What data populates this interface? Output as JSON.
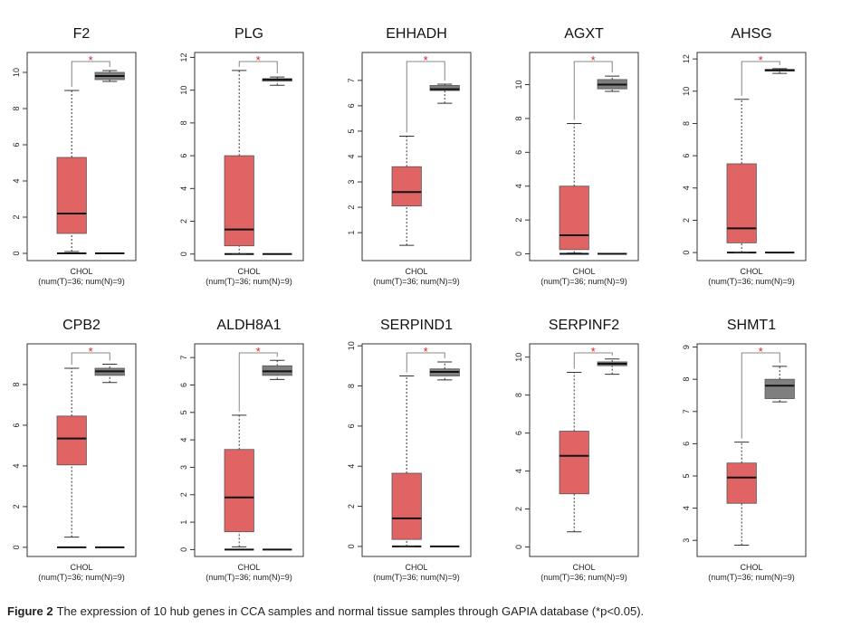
{
  "chart_data": [
    {
      "type": "box",
      "title": "F2",
      "x_label": "CHOL",
      "x_sublabel": "(num(T)=36; num(N)=9)",
      "annotation": "*",
      "ylim": [
        -0.4,
        11.1
      ],
      "yticks": [
        0,
        2,
        4,
        6,
        8,
        10
      ],
      "boxes": [
        {
          "color": "#e06464",
          "min": 0.1,
          "q1": 1.1,
          "median": 2.2,
          "q3": 5.3,
          "max": 9.0
        },
        {
          "color": "#7f7f7f",
          "min": 9.5,
          "q1": 9.6,
          "median": 9.8,
          "q3": 10.0,
          "max": 10.1
        }
      ],
      "zero_boxes": [
        0,
        0
      ]
    },
    {
      "type": "box",
      "title": "PLG",
      "x_label": "CHOL",
      "x_sublabel": "(num(T)=36; num(N)=9)",
      "annotation": "*",
      "ylim": [
        -0.4,
        12.3
      ],
      "yticks": [
        0,
        2,
        4,
        6,
        8,
        10,
        12
      ],
      "boxes": [
        {
          "color": "#e06464",
          "min": 0,
          "q1": 0.5,
          "median": 1.5,
          "q3": 6.0,
          "max": 11.2
        },
        {
          "color": "#7f7f7f",
          "min": 10.3,
          "q1": 10.55,
          "median": 10.65,
          "q3": 10.7,
          "max": 10.8
        }
      ],
      "zero_boxes": [
        0,
        0
      ]
    },
    {
      "type": "box",
      "title": "EHHADH",
      "x_label": "CHOL",
      "x_sublabel": "(num(T)=36; num(N)=9)",
      "annotation": "*",
      "ylim": [
        -0.1,
        8.1
      ],
      "yticks": [
        1,
        2,
        3,
        4,
        5,
        6,
        7
      ],
      "boxes": [
        {
          "color": "#e06464",
          "min": 0.5,
          "q1": 2.05,
          "median": 2.6,
          "q3": 3.6,
          "max": 4.8
        },
        {
          "color": "#7f7f7f",
          "min": 6.1,
          "q1": 6.6,
          "median": 6.65,
          "q3": 6.8,
          "max": 6.85
        }
      ]
    },
    {
      "type": "box",
      "title": "AGXT",
      "x_label": "CHOL",
      "x_sublabel": "(num(T)=36; num(N)=9)",
      "annotation": "*",
      "ylim": [
        -0.4,
        11.9
      ],
      "yticks": [
        0,
        2,
        4,
        6,
        8,
        10
      ],
      "boxes": [
        {
          "color": "#e06464",
          "min": 0.05,
          "q1": 0.25,
          "median": 1.1,
          "q3": 4.0,
          "max": 7.7
        },
        {
          "color": "#7f7f7f",
          "min": 9.6,
          "q1": 9.75,
          "median": 10.0,
          "q3": 10.3,
          "max": 10.5
        }
      ],
      "zero_boxes": [
        0,
        0
      ]
    },
    {
      "type": "box",
      "title": "AHSG",
      "x_label": "CHOL",
      "x_sublabel": "(num(T)=36; num(N)=9)",
      "annotation": "*",
      "ylim": [
        -0.5,
        12.4
      ],
      "yticks": [
        0,
        2,
        4,
        6,
        8,
        10,
        12
      ],
      "boxes": [
        {
          "color": "#e06464",
          "min": 0,
          "q1": 0.6,
          "median": 1.5,
          "q3": 5.5,
          "max": 9.5
        },
        {
          "color": "#7f7f7f",
          "min": 11.1,
          "q1": 11.25,
          "median": 11.3,
          "q3": 11.35,
          "max": 11.4
        }
      ],
      "zero_boxes": [
        0,
        0
      ]
    },
    {
      "type": "box",
      "title": "CPB2",
      "x_label": "CHOL",
      "x_sublabel": "(num(T)=36; num(N)=9)",
      "annotation": "*",
      "ylim": [
        -0.45,
        10.0
      ],
      "yticks": [
        0,
        2,
        4,
        6,
        8
      ],
      "boxes": [
        {
          "color": "#e06464",
          "min": 0.5,
          "q1": 4.05,
          "median": 5.35,
          "q3": 6.45,
          "max": 8.8
        },
        {
          "color": "#7f7f7f",
          "min": 8.1,
          "q1": 8.45,
          "median": 8.65,
          "q3": 8.8,
          "max": 9.0
        }
      ],
      "zero_boxes": [
        0,
        0
      ]
    },
    {
      "type": "box",
      "title": "ALDH8A1",
      "x_label": "CHOL",
      "x_sublabel": "(num(T)=36; num(N)=9)",
      "annotation": "*",
      "ylim": [
        -0.25,
        7.5
      ],
      "yticks": [
        0,
        1,
        2,
        3,
        4,
        5,
        6,
        7
      ],
      "boxes": [
        {
          "color": "#e06464",
          "min": 0.1,
          "q1": 0.65,
          "median": 1.9,
          "q3": 3.65,
          "max": 4.9
        },
        {
          "color": "#7f7f7f",
          "min": 6.2,
          "q1": 6.35,
          "median": 6.5,
          "q3": 6.7,
          "max": 6.9
        }
      ],
      "zero_boxes": [
        0,
        0
      ]
    },
    {
      "type": "box",
      "title": "SERPIND1",
      "x_label": "CHOL",
      "x_sublabel": "(num(T)=36; num(N)=9)",
      "annotation": "*",
      "ylim": [
        -0.5,
        10.1
      ],
      "yticks": [
        0,
        2,
        4,
        6,
        8,
        10
      ],
      "boxes": [
        {
          "color": "#e06464",
          "min": 0,
          "q1": 0.35,
          "median": 1.4,
          "q3": 3.65,
          "max": 8.5
        },
        {
          "color": "#7f7f7f",
          "min": 8.3,
          "q1": 8.5,
          "median": 8.7,
          "q3": 8.85,
          "max": 9.2
        }
      ],
      "zero_boxes": [
        0,
        0
      ]
    },
    {
      "type": "box",
      "title": "SERPINF2",
      "x_label": "CHOL",
      "x_sublabel": "(num(T)=36; num(N)=9)",
      "annotation": "*",
      "ylim": [
        -0.5,
        10.7
      ],
      "yticks": [
        0,
        2,
        4,
        6,
        8,
        10
      ],
      "boxes": [
        {
          "color": "#e06464",
          "min": 0.8,
          "q1": 2.8,
          "median": 4.8,
          "q3": 6.1,
          "max": 9.2
        },
        {
          "color": "#7f7f7f",
          "min": 9.1,
          "q1": 9.55,
          "median": 9.65,
          "q3": 9.75,
          "max": 9.9
        }
      ]
    },
    {
      "type": "box",
      "title": "SHMT1",
      "x_label": "CHOL",
      "x_sublabel": "(num(T)=36; num(N)=9)",
      "annotation": "*",
      "ylim": [
        2.5,
        9.1
      ],
      "yticks": [
        3,
        4,
        5,
        6,
        7,
        8,
        9
      ],
      "boxes": [
        {
          "color": "#e06464",
          "min": 2.85,
          "q1": 4.15,
          "median": 4.95,
          "q3": 5.4,
          "max": 6.05
        },
        {
          "color": "#7f7f7f",
          "min": 7.3,
          "q1": 7.4,
          "median": 7.8,
          "q3": 8.0,
          "max": 8.4
        }
      ]
    }
  ],
  "caption": {
    "label": "Figure 2",
    "text": "The expression of 10 hub genes in CCA samples and normal tissue samples through GAPIA database (*p<0.05)."
  }
}
